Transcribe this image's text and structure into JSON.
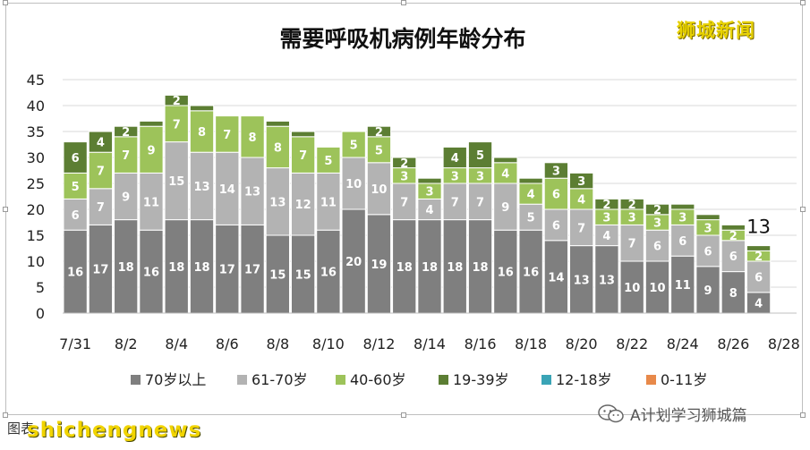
{
  "watermarks": {
    "top_right": "狮城新闻",
    "footer_left": "图表",
    "footer_site": "shichengnews",
    "footer_account": "A计划学习狮城篇"
  },
  "colors": {
    "70岁以上": "#7f7f7f",
    "61-70岁": "#b3b3b3",
    "40-60岁": "#9dc35a",
    "19-39岁": "#5c7e33",
    "12-18岁": "#3aa4b6",
    "0-11岁": "#e8894a"
  },
  "icons": {
    "wechat": "wechat-icon"
  },
  "chart_data": {
    "type": "bar",
    "stacked": true,
    "title": "需要呼吸机病例年龄分布",
    "xlabel": "",
    "ylabel": "",
    "ylim": [
      0,
      45
    ],
    "yticks": [
      0,
      5,
      10,
      15,
      20,
      25,
      30,
      35,
      40,
      45
    ],
    "grid": true,
    "legend_position": "bottom",
    "categories": [
      "7/31",
      "8/1",
      "8/2",
      "8/3",
      "8/4",
      "8/5",
      "8/6",
      "8/7",
      "8/8",
      "8/9",
      "8/10",
      "8/11",
      "8/12",
      "8/13",
      "8/14",
      "8/15",
      "8/16",
      "8/17",
      "8/18",
      "8/19",
      "8/20",
      "8/21",
      "8/22",
      "8/23",
      "8/24",
      "8/25",
      "8/26",
      "8/27",
      "8/28"
    ],
    "xtick_labels": [
      "7/31",
      "8/2",
      "8/4",
      "8/6",
      "8/8",
      "8/10",
      "8/12",
      "8/14",
      "8/16",
      "8/18",
      "8/20",
      "8/22",
      "8/24",
      "8/26",
      "8/28"
    ],
    "series": [
      {
        "name": "70岁以上",
        "values": [
          16,
          17,
          18,
          16,
          18,
          18,
          17,
          17,
          15,
          15,
          16,
          20,
          19,
          18,
          18,
          18,
          18,
          16,
          16,
          14,
          13,
          13,
          10,
          10,
          11,
          9,
          8,
          4,
          0
        ]
      },
      {
        "name": "61-70岁",
        "values": [
          6,
          7,
          9,
          11,
          15,
          13,
          14,
          13,
          13,
          12,
          11,
          10,
          10,
          7,
          4,
          7,
          7,
          9,
          5,
          6,
          7,
          4,
          7,
          6,
          6,
          6,
          6,
          6,
          0
        ]
      },
      {
        "name": "40-60岁",
        "values": [
          5,
          7,
          7,
          9,
          7,
          8,
          7,
          8,
          8,
          7,
          5,
          5,
          5,
          3,
          3,
          3,
          3,
          4,
          4,
          6,
          4,
          3,
          3,
          3,
          3,
          3,
          2,
          2,
          0
        ]
      },
      {
        "name": "19-39岁",
        "values": [
          6,
          4,
          2,
          1,
          2,
          1,
          0,
          0,
          1,
          1,
          0,
          0,
          2,
          2,
          1,
          4,
          5,
          1,
          1,
          3,
          3,
          2,
          2,
          2,
          1,
          1,
          1,
          1,
          0
        ]
      },
      {
        "name": "12-18岁",
        "values": [
          0,
          0,
          0,
          0,
          0,
          0,
          0,
          0,
          0,
          0,
          0,
          0,
          0,
          0,
          0,
          0,
          0,
          0,
          0,
          0,
          0,
          0,
          0,
          0,
          0,
          0,
          0,
          0,
          0
        ]
      },
      {
        "name": "0-11岁",
        "values": [
          0,
          0,
          0,
          0,
          0,
          0,
          0,
          0,
          0,
          0,
          0,
          0,
          0,
          0,
          0,
          0,
          0,
          0,
          0,
          0,
          0,
          0,
          0,
          0,
          0,
          0,
          0,
          0,
          0
        ]
      }
    ],
    "annotations": [
      {
        "category": "8/27",
        "text": "13"
      }
    ]
  }
}
